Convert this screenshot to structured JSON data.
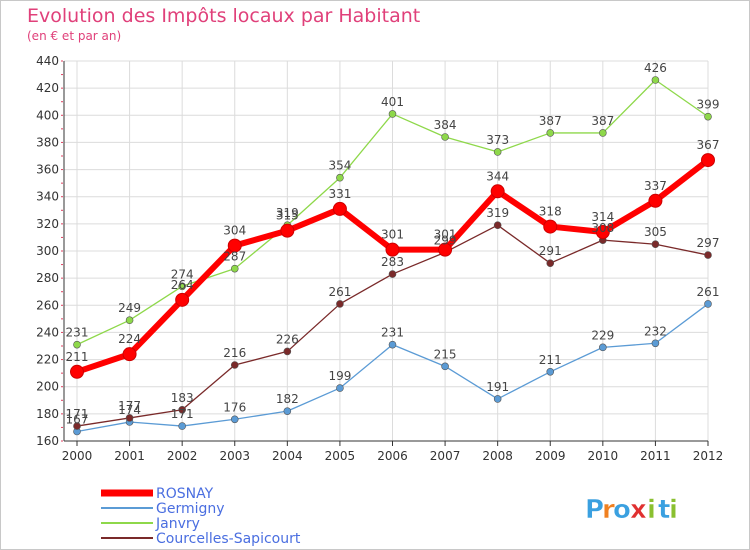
{
  "title": "Evolution des Impôts locaux par Habitant",
  "subtitle": "(en € et par an)",
  "logo": {
    "text": "Proxiti",
    "letters": [
      "P",
      "r",
      "o",
      "x",
      "i",
      "t",
      "i"
    ]
  },
  "chart_data": {
    "type": "line",
    "title": "Evolution des Impôts locaux par Habitant",
    "subtitle": "(en € et par an)",
    "xlabel": "",
    "ylabel": "",
    "x": [
      "2000",
      "2001",
      "2002",
      "2003",
      "2004",
      "2005",
      "2006",
      "2007",
      "2008",
      "2009",
      "2010",
      "2011",
      "2012"
    ],
    "ylim": [
      160,
      440
    ],
    "yticks": [
      "160",
      "180",
      "200",
      "220",
      "240",
      "260",
      "280",
      "300",
      "320",
      "340",
      "360",
      "380",
      "400",
      "420",
      "440"
    ],
    "grid": true,
    "legend_position": "bottom-left",
    "series": [
      {
        "name": "ROSNAY",
        "color": "#ff0000",
        "values": [
          211,
          224,
          264,
          304,
          315,
          331,
          301,
          301,
          344,
          318,
          314,
          337,
          367
        ],
        "labels": [
          "211",
          "224",
          "264",
          "304",
          "315",
          "331",
          "301",
          "301",
          "344",
          "318",
          "314",
          "337",
          "367"
        ]
      },
      {
        "name": "Germigny",
        "color": "#5b9bd5",
        "values": [
          167,
          174,
          171,
          176,
          182,
          199,
          231,
          215,
          191,
          211,
          229,
          232,
          261
        ],
        "labels": [
          "167",
          "174",
          "171",
          "176",
          "182",
          "199",
          "231",
          "215",
          "191",
          "211",
          "229",
          "232",
          "261"
        ]
      },
      {
        "name": "Janvry",
        "color": "#8ed84a",
        "values": [
          231,
          249,
          274,
          287,
          319,
          354,
          401,
          384,
          373,
          387,
          387,
          426,
          399
        ],
        "labels": [
          "231",
          "249",
          "274",
          "287",
          "319",
          "354",
          "401",
          "384",
          "373",
          "387",
          "387",
          "426",
          "399"
        ]
      },
      {
        "name": "Courcelles-Sapicourt",
        "color": "#7a2a2a",
        "values": [
          171,
          177,
          183,
          216,
          226,
          261,
          283,
          299,
          319,
          291,
          308,
          305,
          297
        ],
        "labels": [
          "171",
          "177",
          "183",
          "216",
          "226",
          "261",
          "283",
          "299",
          "319",
          "291",
          "308",
          "305",
          "297"
        ]
      }
    ]
  }
}
